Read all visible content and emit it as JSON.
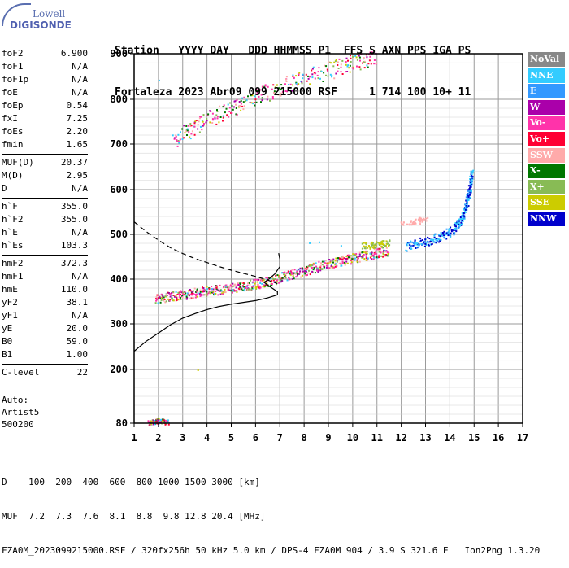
{
  "header": {
    "line1": "Station   YYYY DAY   DDD HHMMSS P1  FFS S AXN PPS IGA PS",
    "line2": "Fortaleza 2023 Abr09 099 215000 RSF     1 714 100 10+ 11"
  },
  "logo": {
    "top": "Lowell",
    "bottom": "DIGISONDE"
  },
  "params_group1": [
    {
      "name": "foF2",
      "value": "6.900"
    },
    {
      "name": "foF1",
      "value": "N/A"
    },
    {
      "name": "foF1p",
      "value": "N/A"
    },
    {
      "name": "foE",
      "value": "N/A"
    },
    {
      "name": "foEp",
      "value": "0.54"
    },
    {
      "name": "fxI",
      "value": "7.25"
    },
    {
      "name": "foEs",
      "value": "2.20"
    },
    {
      "name": "fmin",
      "value": "1.65"
    }
  ],
  "params_group2": [
    {
      "name": "MUF(D)",
      "value": "20.37"
    },
    {
      "name": "M(D)",
      "value": "2.95"
    },
    {
      "name": "D",
      "value": "N/A"
    }
  ],
  "params_group3": [
    {
      "name": "h`F",
      "value": "355.0"
    },
    {
      "name": "h`F2",
      "value": "355.0"
    },
    {
      "name": "h`E",
      "value": "N/A"
    },
    {
      "name": "h`Es",
      "value": "103.3"
    }
  ],
  "params_group4": [
    {
      "name": "hmF2",
      "value": "372.3"
    },
    {
      "name": "hmF1",
      "value": "N/A"
    },
    {
      "name": "hmE",
      "value": "110.0"
    },
    {
      "name": "yF2",
      "value": "38.1"
    },
    {
      "name": "yF1",
      "value": "N/A"
    },
    {
      "name": "yE",
      "value": "20.0"
    },
    {
      "name": "B0",
      "value": "59.0"
    },
    {
      "name": "B1",
      "value": "1.00"
    }
  ],
  "params_group5": [
    {
      "name": "C-level",
      "value": "22"
    }
  ],
  "auto": {
    "l1": "Auto:",
    "l2": "Artist5",
    "l3": "500200"
  },
  "legend": [
    {
      "label": "NoVal",
      "color": "#888888"
    },
    {
      "label": "NNE",
      "color": "#33ccff"
    },
    {
      "label": "E",
      "color": "#3399ff"
    },
    {
      "label": "W",
      "color": "#aa00aa"
    },
    {
      "label": "Vo-",
      "color": "#ff33aa"
    },
    {
      "label": "Vo+",
      "color": "#ff0033"
    },
    {
      "label": "SSW",
      "color": "#ffaaaa"
    },
    {
      "label": "X-",
      "color": "#007700"
    },
    {
      "label": "X+",
      "color": "#88bb55"
    },
    {
      "label": "SSE",
      "color": "#cccc00"
    },
    {
      "label": "NNW",
      "color": "#0000cc"
    }
  ],
  "footer": {
    "l1": "D    100  200  400  600  800 1000 1500 3000 [km]",
    "l2": "MUF  7.2  7.3  7.6  8.1  8.8  9.8 12.8 20.4 [MHz]",
    "l3": "FZA0M_2023099215000.RSF / 320fx256h 50 kHz 5.0 km / DPS-4 FZA0M 904 / 3.9 S 321.6 E   Ion2Png 1.3.20"
  },
  "chart_data": {
    "type": "scatter",
    "xlabel": "",
    "ylabel": "",
    "xlim": [
      1,
      17
    ],
    "ylim": [
      80,
      900
    ],
    "x_ticks": [
      1,
      2,
      3,
      4,
      5,
      6,
      7,
      8,
      9,
      10,
      11,
      12,
      13,
      14,
      15,
      16,
      17
    ],
    "y_ticks": [
      80,
      200,
      300,
      400,
      500,
      600,
      700,
      800,
      900
    ],
    "grid": true,
    "echo_traces": [
      {
        "name": "F2 O-trace",
        "series": "Vo-",
        "points": [
          [
            1.9,
            357
          ],
          [
            2.5,
            362
          ],
          [
            3.0,
            366
          ],
          [
            3.5,
            370
          ],
          [
            4.0,
            374
          ],
          [
            4.5,
            378
          ],
          [
            5.0,
            381
          ],
          [
            5.5,
            385
          ],
          [
            6.0,
            390
          ],
          [
            6.5,
            396
          ],
          [
            7.0,
            404
          ],
          [
            7.5,
            412
          ],
          [
            8.0,
            420
          ],
          [
            8.5,
            428
          ],
          [
            9.0,
            435
          ],
          [
            9.5,
            441
          ],
          [
            10.0,
            447
          ],
          [
            10.5,
            453
          ],
          [
            11.0,
            460
          ],
          [
            11.5,
            466
          ]
        ]
      },
      {
        "name": "F2 X-trace",
        "series": "NNW",
        "points": [
          [
            12.2,
            475
          ],
          [
            12.6,
            481
          ],
          [
            13.0,
            486
          ],
          [
            13.4,
            492
          ],
          [
            13.8,
            500
          ],
          [
            14.1,
            510
          ],
          [
            14.3,
            522
          ],
          [
            14.5,
            540
          ],
          [
            14.65,
            565
          ],
          [
            14.8,
            600
          ],
          [
            14.9,
            640
          ]
        ]
      },
      {
        "name": "F2 multi-hop",
        "series": "Vo-",
        "points": [
          [
            2.6,
            708
          ],
          [
            3.0,
            724
          ],
          [
            3.5,
            740
          ],
          [
            4.0,
            756
          ],
          [
            4.5,
            770
          ],
          [
            5.0,
            782
          ],
          [
            5.5,
            794
          ],
          [
            6.0,
            806
          ],
          [
            6.5,
            816
          ],
          [
            7.0,
            826
          ],
          [
            7.5,
            836
          ],
          [
            8.0,
            846
          ],
          [
            8.5,
            856
          ],
          [
            9.0,
            864
          ],
          [
            9.5,
            872
          ],
          [
            10.0,
            880
          ],
          [
            10.5,
            887
          ],
          [
            11.0,
            893
          ]
        ]
      },
      {
        "name": "Es",
        "series": "Vo-",
        "points": [
          [
            1.6,
            82
          ],
          [
            1.8,
            84
          ],
          [
            2.0,
            86
          ],
          [
            2.2,
            85
          ],
          [
            2.4,
            83
          ]
        ]
      }
    ],
    "profile_solid": [
      [
        1,
        240
      ],
      [
        1.5,
        262
      ],
      [
        2,
        280
      ],
      [
        2.5,
        298
      ],
      [
        3,
        313
      ],
      [
        3.5,
        323
      ],
      [
        4,
        332
      ],
      [
        4.5,
        339
      ],
      [
        5,
        344
      ],
      [
        5.5,
        348
      ],
      [
        6,
        352
      ],
      [
        6.5,
        358
      ],
      [
        6.9,
        365
      ],
      [
        6.9,
        372
      ],
      [
        6.6,
        383
      ],
      [
        6.35,
        393
      ],
      [
        6.55,
        400
      ],
      [
        6.8,
        412
      ],
      [
        7.0,
        428
      ],
      [
        7.0,
        444
      ],
      [
        6.95,
        458
      ]
    ],
    "profile_dashed": [
      [
        1,
        528
      ],
      [
        1.5,
        506
      ],
      [
        2,
        487
      ],
      [
        2.5,
        470
      ],
      [
        3,
        457
      ],
      [
        3.5,
        446
      ],
      [
        4,
        437
      ],
      [
        4.5,
        428
      ],
      [
        5,
        420
      ],
      [
        5.5,
        413
      ],
      [
        6,
        406
      ],
      [
        6.5,
        398
      ],
      [
        6.9,
        390
      ]
    ]
  }
}
